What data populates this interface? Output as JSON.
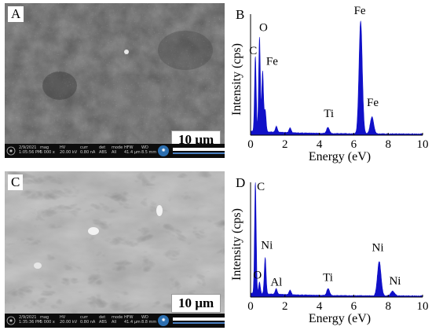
{
  "panels": {
    "a": {
      "letter": "A",
      "scale": "10 µm"
    },
    "c": {
      "letter": "C",
      "scale": "10 µm"
    }
  },
  "infobar_a": {
    "date_label": "2/9/2021",
    "date_value": "1:05:56 PM",
    "mag_label": "mag",
    "mag_value": "5 000 x",
    "hv_label": "HV",
    "hv_value": "20.00 kV",
    "curr_label": "curr",
    "curr_value": "0.80 nA",
    "det_label": "det",
    "det_value": "ABS",
    "mode_label": "mode",
    "mode_value": "All",
    "hfw_label": "HFW",
    "hfw_value": "41.4 µm",
    "wd_label": "WD",
    "wd_value": "8.5 mm"
  },
  "infobar_c": {
    "date_label": "2/9/2021",
    "date_value": "1:35:36 PM",
    "mag_label": "mag",
    "mag_value": "5 000 x",
    "hv_label": "HV",
    "hv_value": "20.00 kV",
    "curr_label": "curr",
    "curr_value": "0.80 nA",
    "det_label": "det",
    "det_value": "ABS",
    "mode_label": "mode",
    "mode_value": "All",
    "hfw_label": "HFW",
    "hfw_value": "41.4 µm",
    "wd_label": "WD",
    "wd_value": "8.8 mm"
  },
  "chart_data": [
    {
      "type": "line",
      "panel_letter": "B",
      "xlabel": "Energy (eV)",
      "ylabel": "Intensity (cps)",
      "xlim": [
        0,
        10
      ],
      "xticks": [
        "0",
        "2",
        "4",
        "6",
        "8",
        "10"
      ],
      "color": "#1010c8",
      "peaks": [
        {
          "x": 0.28,
          "h": 0.62
        },
        {
          "x": 0.52,
          "h": 0.78
        },
        {
          "x": 0.7,
          "h": 0.5
        },
        {
          "x": 0.85,
          "h": 0.18
        },
        {
          "x": 1.5,
          "h": 0.05
        },
        {
          "x": 2.3,
          "h": 0.04
        },
        {
          "x": 4.5,
          "h": 0.05
        },
        {
          "x": 6.4,
          "h": 0.93
        },
        {
          "x": 7.06,
          "h": 0.14
        }
      ],
      "labels": [
        {
          "text": "C",
          "x": 0.15,
          "h": 0.67
        },
        {
          "text": "O",
          "x": 0.75,
          "h": 0.86
        },
        {
          "text": "Fe",
          "x": 1.25,
          "h": 0.58
        },
        {
          "text": "Ti",
          "x": 4.55,
          "h": 0.15
        },
        {
          "text": "Fe",
          "x": 6.35,
          "h": 1.0
        },
        {
          "text": "Fe",
          "x": 7.1,
          "h": 0.24
        }
      ]
    },
    {
      "type": "line",
      "panel_letter": "D",
      "xlabel": "Energy (eV)",
      "ylabel": "Intensity (cps)",
      "xlim": [
        0,
        10
      ],
      "xticks": [
        "0",
        "2",
        "4",
        "6",
        "8",
        "10"
      ],
      "color": "#1010c8",
      "peaks": [
        {
          "x": 0.28,
          "h": 0.97
        },
        {
          "x": 0.52,
          "h": 0.1
        },
        {
          "x": 0.85,
          "h": 0.32
        },
        {
          "x": 1.49,
          "h": 0.05
        },
        {
          "x": 2.3,
          "h": 0.04
        },
        {
          "x": 4.51,
          "h": 0.06
        },
        {
          "x": 7.48,
          "h": 0.3
        },
        {
          "x": 8.26,
          "h": 0.04
        }
      ],
      "labels": [
        {
          "text": "C",
          "x": 0.6,
          "h": 0.93
        },
        {
          "text": "Ni",
          "x": 0.95,
          "h": 0.42
        },
        {
          "text": "O",
          "x": 0.4,
          "h": 0.16
        },
        {
          "text": "Al",
          "x": 1.5,
          "h": 0.1
        },
        {
          "text": "Ti",
          "x": 4.5,
          "h": 0.14
        },
        {
          "text": "Ni",
          "x": 7.4,
          "h": 0.4
        },
        {
          "text": "Ni",
          "x": 8.4,
          "h": 0.11
        }
      ]
    }
  ]
}
